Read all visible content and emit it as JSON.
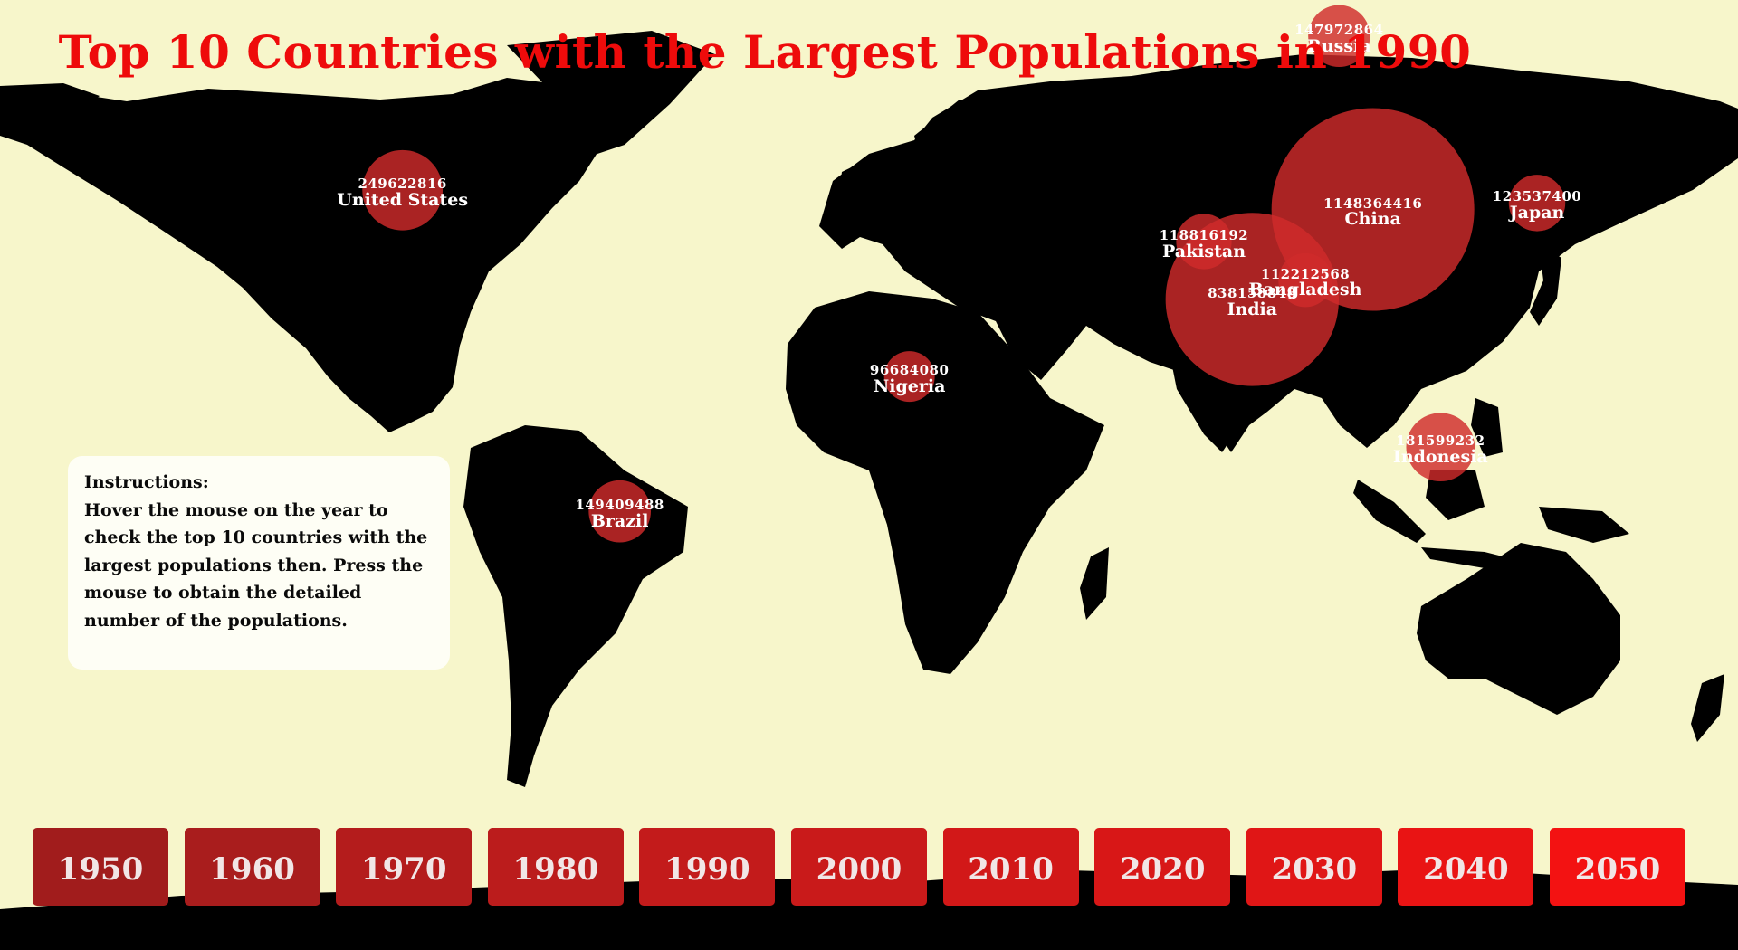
{
  "title": "Top 10 Countries with the Largest Populations in 1990",
  "instructions": {
    "heading": "Instructions:",
    "body": "Hover the mouse on the year to check the top 10 countries with the largest populations then. Press the mouse to obtain the detailed number of the populations."
  },
  "colors": {
    "background": "#f7f6cb",
    "land": "#000000",
    "title": "#ee0b0b",
    "bubble": "#cf2b2b",
    "label": "#ffffff"
  },
  "countries": [
    {
      "name": "China",
      "population": "1148364416",
      "lon": 104,
      "lat": 35
    },
    {
      "name": "India",
      "population": "838158848",
      "lon": 79,
      "lat": 21
    },
    {
      "name": "United States",
      "population": "249622816",
      "lon": -97,
      "lat": 38
    },
    {
      "name": "Indonesia",
      "population": "181599232",
      "lon": 118,
      "lat": -2
    },
    {
      "name": "Brazil",
      "population": "149409488",
      "lon": -52,
      "lat": -12
    },
    {
      "name": "Russia",
      "population": "147972864",
      "lon": 97,
      "lat": 62
    },
    {
      "name": "Japan",
      "population": "123537400",
      "lon": 138,
      "lat": 36
    },
    {
      "name": "Pakistan",
      "population": "118816192",
      "lon": 69,
      "lat": 30
    },
    {
      "name": "Bangladesh",
      "population": "112212568",
      "lon": 90,
      "lat": 24
    },
    {
      "name": "Nigeria",
      "population": "96684080",
      "lon": 8,
      "lat": 9
    }
  ],
  "years": [
    "1950",
    "1960",
    "1970",
    "1980",
    "1990",
    "2000",
    "2010",
    "2020",
    "2030",
    "2040",
    "2050"
  ],
  "year_colors": [
    "#a11c1c",
    "#a91d1d",
    "#b41c1c",
    "#bb1c1c",
    "#c31b1b",
    "#c91a1a",
    "#d21818",
    "#d81717",
    "#e01616",
    "#e91414",
    "#f31212"
  ],
  "selected_year": "1990"
}
